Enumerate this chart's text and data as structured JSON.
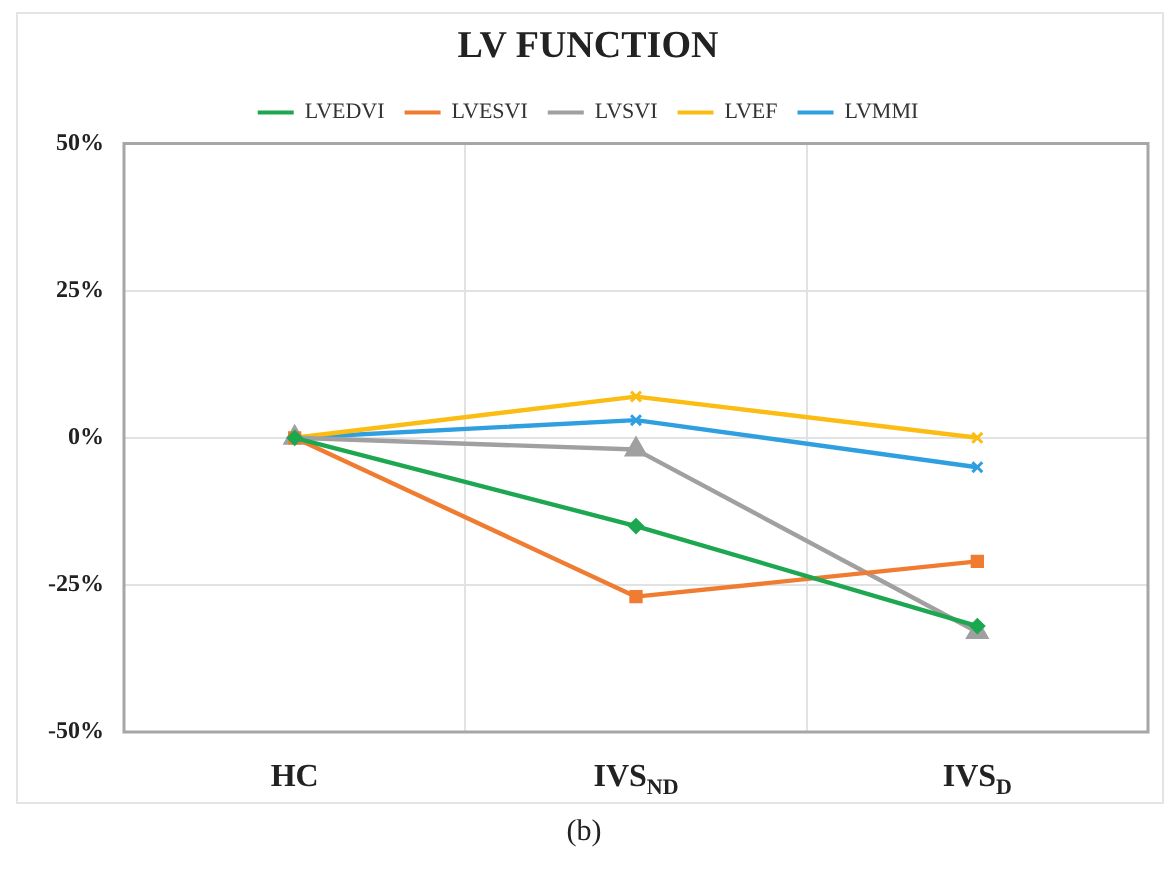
{
  "chart_data": {
    "type": "line",
    "title": "LV FUNCTION",
    "categories": [
      "HC",
      "IVS$_{ND}$",
      "IVS$_{D}$"
    ],
    "series": [
      {
        "name": "LVEDVI",
        "color": "#1ca750",
        "marker": "diamond",
        "values": [
          0,
          -15,
          -32
        ]
      },
      {
        "name": "LVESVI",
        "color": "#f07c31",
        "marker": "square",
        "values": [
          0,
          -27,
          -21
        ]
      },
      {
        "name": "LVSVI",
        "color": "#a0a0a0",
        "marker": "triangle",
        "values": [
          0,
          -2,
          -33
        ]
      },
      {
        "name": "LVEF",
        "color": "#fbbd13",
        "marker": "cross",
        "values": [
          0,
          7,
          0
        ]
      },
      {
        "name": "LVMMI",
        "color": "#2f9fe0",
        "marker": "cross",
        "values": [
          0,
          3,
          -5
        ]
      }
    ],
    "ylim": [
      -50,
      50
    ],
    "yticks": [
      {
        "value": -50,
        "label": "-50%"
      },
      {
        "value": -25,
        "label": "-25%"
      },
      {
        "value": 0,
        "label": "0%"
      },
      {
        "value": 25,
        "label": "25%"
      },
      {
        "value": 50,
        "label": "50%"
      }
    ],
    "grid": true,
    "legend": "top",
    "annotations": [
      "(b)"
    ]
  }
}
